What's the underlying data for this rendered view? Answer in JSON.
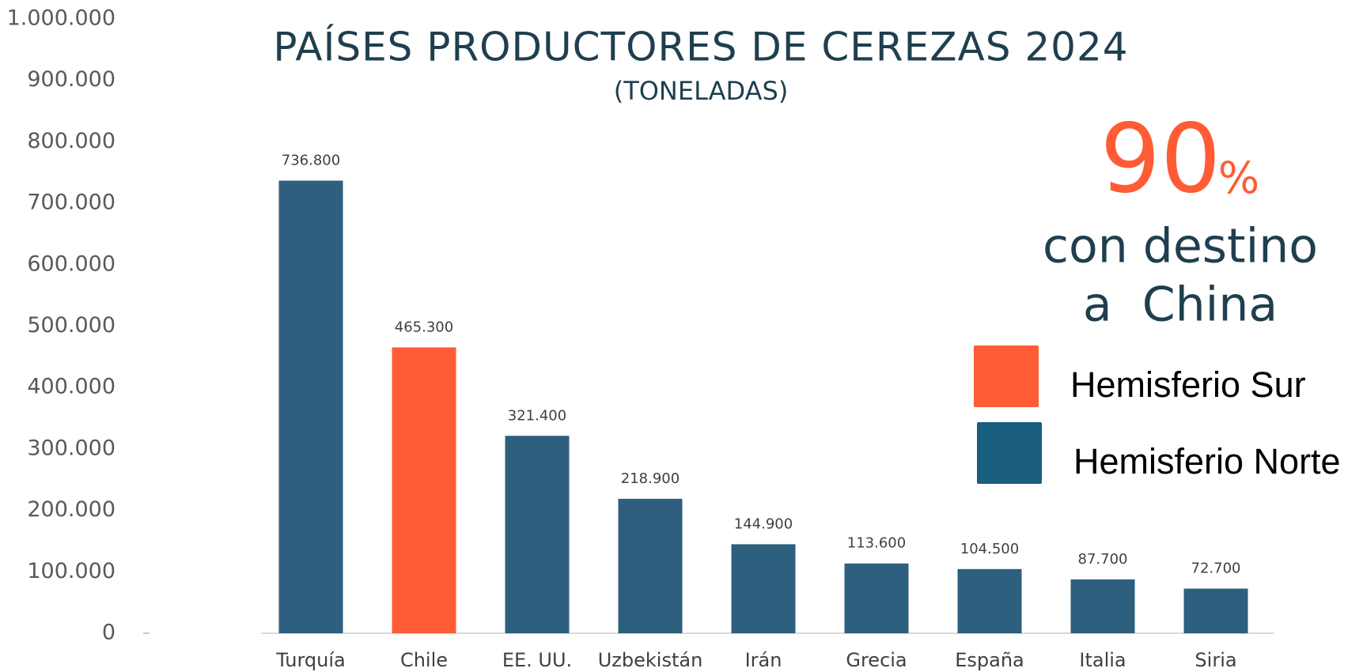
{
  "chart_data": {
    "type": "bar",
    "title": "PAÍSES PRODUCTORES DE CEREZAS 2024",
    "subtitle": "(TONELADAS)",
    "categories": [
      "Turquía",
      "Chile",
      "EE. UU.",
      "Uzbekistán",
      "Irán",
      "Grecia",
      "España",
      "Italia",
      "Siria"
    ],
    "values": [
      736800,
      465300,
      321400,
      218900,
      144900,
      113600,
      104500,
      87700,
      72700
    ],
    "value_labels": [
      "736.800",
      "465.300",
      "321.400",
      "218.900",
      "144.900",
      "113.600",
      "104.500",
      "87.700",
      "72.700"
    ],
    "colors": [
      "#2e5f7f",
      "#ff5c35",
      "#2e5f7f",
      "#2e5f7f",
      "#2e5f7f",
      "#2e5f7f",
      "#2e5f7f",
      "#2e5f7f",
      "#2e5f7f"
    ],
    "ylim": [
      0,
      1000000
    ],
    "yticks": [
      0,
      {
        "value": 100000,
        "label": "100.000"
      },
      {
        "value": 200000,
        "label": "200.000"
      },
      {
        "value": 300000,
        "label": "300.000"
      },
      {
        "value": 400000,
        "label": "400.000"
      },
      {
        "value": 500000,
        "label": "500.000"
      },
      {
        "value": 600000,
        "label": "600.000"
      },
      {
        "value": 700000,
        "label": "700.000"
      },
      {
        "value": 800000,
        "label": "800.000"
      },
      {
        "value": 900000,
        "label": "900.000"
      },
      {
        "value": 1000000,
        "label": "1.000.000"
      }
    ],
    "grid": false,
    "legend": [
      {
        "name": "Hemisferio Sur",
        "color": "#ff5c35"
      },
      {
        "name": "Hemisferio Norte",
        "color": "#1a5e80"
      }
    ],
    "annotation": {
      "value": 90,
      "unit": "%",
      "lines": [
        "con destino",
        "a  China"
      ],
      "color": "#ff5c35"
    }
  }
}
